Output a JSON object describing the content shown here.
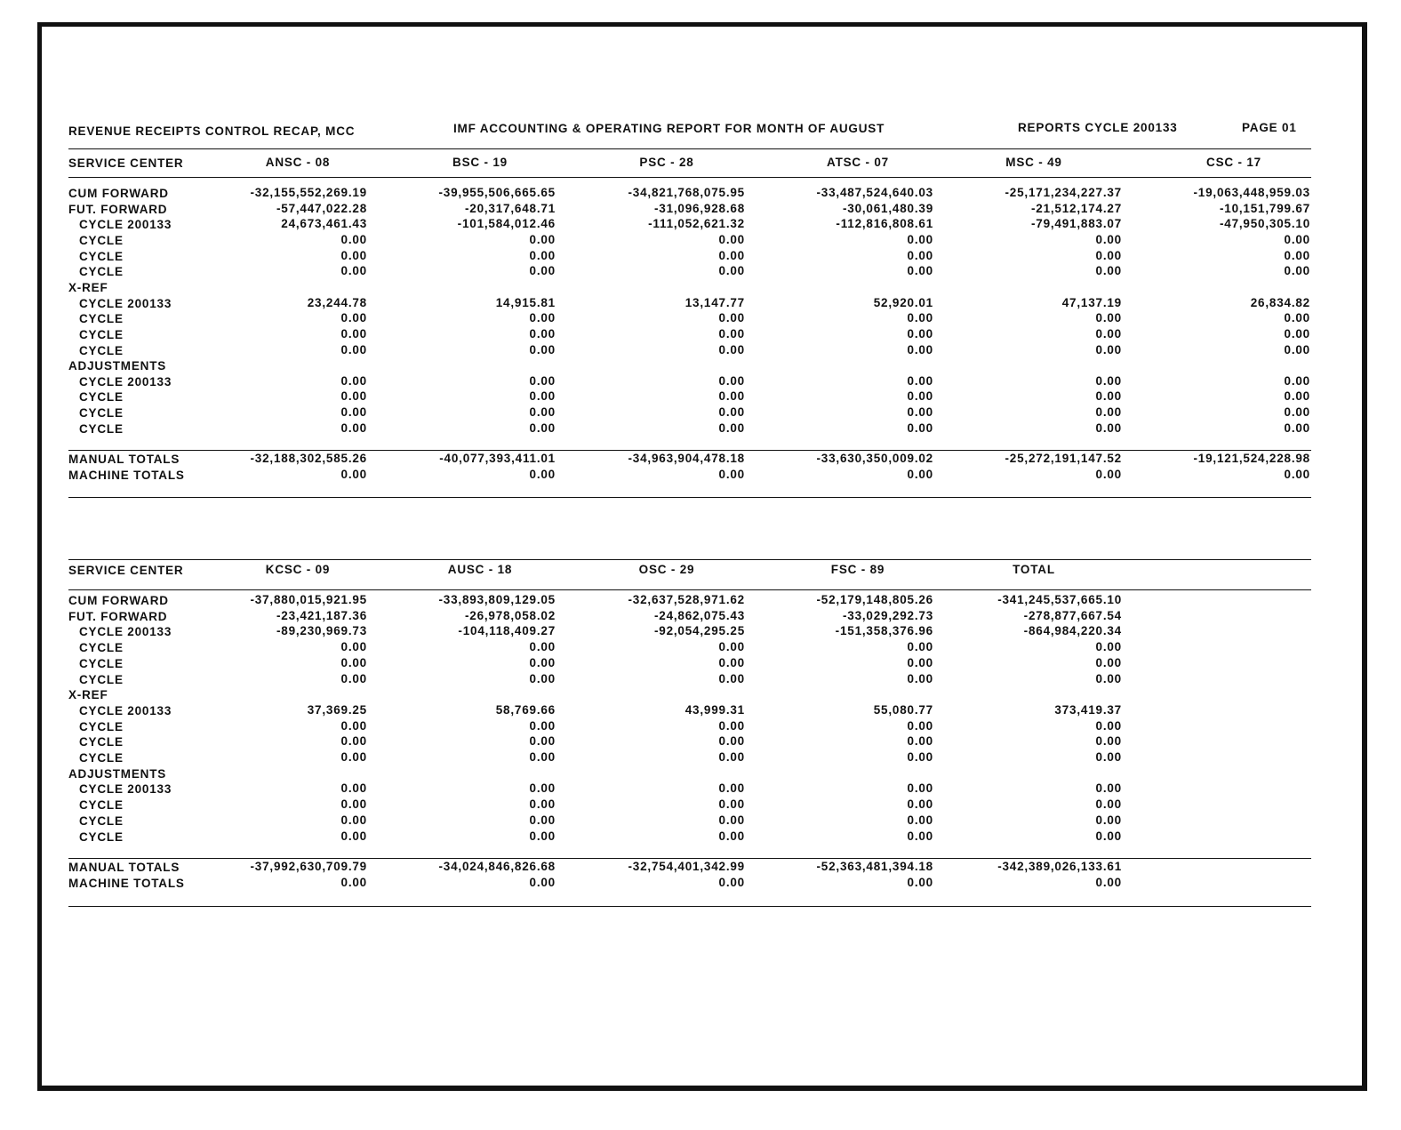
{
  "header": {
    "title": "REVENUE RECEIPTS CONTROL RECAP, MCC",
    "report": "IMF ACCOUNTING & OPERATING REPORT FOR MONTH OF AUGUST",
    "cycle": "REPORTS CYCLE 200133",
    "page": "PAGE 01"
  },
  "tables": [
    {
      "columns": [
        "SERVICE CENTER",
        "ANSC - 08",
        "BSC - 19",
        "PSC - 28",
        "ATSC - 07",
        "MSC - 49",
        "CSC - 17"
      ],
      "rows": [
        {
          "label": "CUM FORWARD",
          "values": [
            "-32,155,552,269.19",
            "-39,955,506,665.65",
            "-34,821,768,075.95",
            "-33,487,524,640.03",
            "-25,171,234,227.37",
            "-19,063,448,959.03"
          ]
        },
        {
          "label": "FUT. FORWARD",
          "values": [
            "-57,447,022.28",
            "-20,317,648.71",
            "-31,096,928.68",
            "-30,061,480.39",
            "-21,512,174.27",
            "-10,151,799.67"
          ]
        },
        {
          "label": "CYCLE 200133",
          "values": [
            "24,673,461.43",
            "-101,584,012.46",
            "-111,052,621.32",
            "-112,816,808.61",
            "-79,491,883.07",
            "-47,950,305.10"
          ]
        },
        {
          "label": "CYCLE",
          "values": [
            "0.00",
            "0.00",
            "0.00",
            "0.00",
            "0.00",
            "0.00"
          ]
        },
        {
          "label": "CYCLE",
          "values": [
            "0.00",
            "0.00",
            "0.00",
            "0.00",
            "0.00",
            "0.00"
          ]
        },
        {
          "label": "CYCLE",
          "values": [
            "0.00",
            "0.00",
            "0.00",
            "0.00",
            "0.00",
            "0.00"
          ]
        },
        {
          "label": "X-REF"
        },
        {
          "label": "CYCLE 200133",
          "values": [
            "23,244.78",
            "14,915.81",
            "13,147.77",
            "52,920.01",
            "47,137.19",
            "26,834.82"
          ]
        },
        {
          "label": "CYCLE",
          "values": [
            "0.00",
            "0.00",
            "0.00",
            "0.00",
            "0.00",
            "0.00"
          ]
        },
        {
          "label": "CYCLE",
          "values": [
            "0.00",
            "0.00",
            "0.00",
            "0.00",
            "0.00",
            "0.00"
          ]
        },
        {
          "label": "CYCLE",
          "values": [
            "0.00",
            "0.00",
            "0.00",
            "0.00",
            "0.00",
            "0.00"
          ]
        },
        {
          "label": "ADJUSTMENTS"
        },
        {
          "label": "CYCLE 200133",
          "values": [
            "0.00",
            "0.00",
            "0.00",
            "0.00",
            "0.00",
            "0.00"
          ]
        },
        {
          "label": "CYCLE",
          "values": [
            "0.00",
            "0.00",
            "0.00",
            "0.00",
            "0.00",
            "0.00"
          ]
        },
        {
          "label": "CYCLE",
          "values": [
            "0.00",
            "0.00",
            "0.00",
            "0.00",
            "0.00",
            "0.00"
          ]
        },
        {
          "label": "CYCLE",
          "values": [
            "0.00",
            "0.00",
            "0.00",
            "0.00",
            "0.00",
            "0.00"
          ]
        }
      ],
      "totals": [
        {
          "label": "MANUAL TOTALS",
          "values": [
            "-32,188,302,585.26",
            "-40,077,393,411.01",
            "-34,963,904,478.18",
            "-33,630,350,009.02",
            "-25,272,191,147.52",
            "-19,121,524,228.98"
          ]
        },
        {
          "label": "MACHINE TOTALS",
          "values": [
            "0.00",
            "0.00",
            "0.00",
            "0.00",
            "0.00",
            "0.00"
          ]
        }
      ]
    },
    {
      "columns": [
        "SERVICE CENTER",
        "KCSC - 09",
        "AUSC - 18",
        "OSC - 29",
        "FSC - 89",
        "TOTAL"
      ],
      "rows": [
        {
          "label": "CUM FORWARD",
          "values": [
            "-37,880,015,921.95",
            "-33,893,809,129.05",
            "-32,637,528,971.62",
            "-52,179,148,805.26",
            "-341,245,537,665.10"
          ]
        },
        {
          "label": "FUT. FORWARD",
          "values": [
            "-23,421,187.36",
            "-26,978,058.02",
            "-24,862,075.43",
            "-33,029,292.73",
            "-278,877,667.54"
          ]
        },
        {
          "label": "CYCLE 200133",
          "values": [
            "-89,230,969.73",
            "-104,118,409.27",
            "-92,054,295.25",
            "-151,358,376.96",
            "-864,984,220.34"
          ]
        },
        {
          "label": "CYCLE",
          "values": [
            "0.00",
            "0.00",
            "0.00",
            "0.00",
            "0.00"
          ]
        },
        {
          "label": "CYCLE",
          "values": [
            "0.00",
            "0.00",
            "0.00",
            "0.00",
            "0.00"
          ]
        },
        {
          "label": "CYCLE",
          "values": [
            "0.00",
            "0.00",
            "0.00",
            "0.00",
            "0.00"
          ]
        },
        {
          "label": "X-REF"
        },
        {
          "label": "CYCLE 200133",
          "values": [
            "37,369.25",
            "58,769.66",
            "43,999.31",
            "55,080.77",
            "373,419.37"
          ]
        },
        {
          "label": "CYCLE",
          "values": [
            "0.00",
            "0.00",
            "0.00",
            "0.00",
            "0.00"
          ]
        },
        {
          "label": "CYCLE",
          "values": [
            "0.00",
            "0.00",
            "0.00",
            "0.00",
            "0.00"
          ]
        },
        {
          "label": "CYCLE",
          "values": [
            "0.00",
            "0.00",
            "0.00",
            "0.00",
            "0.00"
          ]
        },
        {
          "label": "ADJUSTMENTS"
        },
        {
          "label": "CYCLE 200133",
          "values": [
            "0.00",
            "0.00",
            "0.00",
            "0.00",
            "0.00"
          ]
        },
        {
          "label": "CYCLE",
          "values": [
            "0.00",
            "0.00",
            "0.00",
            "0.00",
            "0.00"
          ]
        },
        {
          "label": "CYCLE",
          "values": [
            "0.00",
            "0.00",
            "0.00",
            "0.00",
            "0.00"
          ]
        },
        {
          "label": "CYCLE",
          "values": [
            "0.00",
            "0.00",
            "0.00",
            "0.00",
            "0.00"
          ]
        }
      ],
      "totals": [
        {
          "label": "MANUAL TOTALS",
          "values": [
            "-37,992,630,709.79",
            "-34,024,846,826.68",
            "-32,754,401,342.99",
            "-52,363,481,394.18",
            "-342,389,026,133.61"
          ]
        },
        {
          "label": "MACHINE TOTALS",
          "values": [
            "0.00",
            "0.00",
            "0.00",
            "0.00",
            "0.00"
          ]
        }
      ]
    }
  ]
}
